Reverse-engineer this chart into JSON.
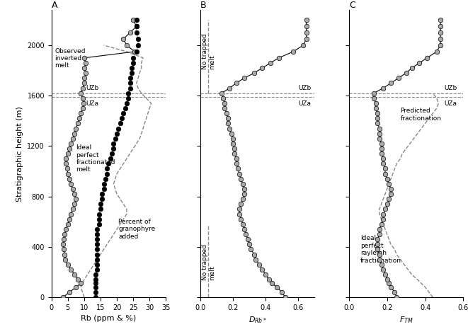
{
  "panel_A": {
    "title": "A",
    "xlabel": "Rb (ppm & %)",
    "xlim": [
      0,
      35
    ],
    "xticks": [
      0,
      5,
      10,
      15,
      20,
      25,
      30,
      35
    ],
    "observed_heights": [
      0,
      40,
      80,
      110,
      140,
      180,
      220,
      260,
      300,
      340,
      380,
      420,
      460,
      500,
      540,
      580,
      620,
      660,
      700,
      740,
      780,
      820,
      860,
      900,
      940,
      980,
      1020,
      1060,
      1100,
      1140,
      1180,
      1220,
      1260,
      1300,
      1340,
      1380,
      1420,
      1460,
      1500,
      1540,
      1580,
      1620,
      1660,
      1700,
      1740,
      1780,
      1820,
      1860,
      1900,
      1950,
      2000,
      2050,
      2100,
      2150,
      2200
    ],
    "observed_rb": [
      3.5,
      5.5,
      7.5,
      9.0,
      8.0,
      7.0,
      6.0,
      5.0,
      4.2,
      4.0,
      3.8,
      3.5,
      3.8,
      4.0,
      4.5,
      5.0,
      5.5,
      6.0,
      6.5,
      7.0,
      7.5,
      7.0,
      6.5,
      6.0,
      5.5,
      5.0,
      4.8,
      4.5,
      4.5,
      5.0,
      5.5,
      6.0,
      6.5,
      7.0,
      7.5,
      8.0,
      8.5,
      9.0,
      9.5,
      9.8,
      9.5,
      9.0,
      9.5,
      10.0,
      10.0,
      10.5,
      10.0,
      10.5,
      10.0,
      25.5,
      23.0,
      22.0,
      24.0,
      26.0,
      25.0
    ],
    "ideal_heights": [
      0,
      40,
      80,
      110,
      140,
      180,
      220,
      260,
      300,
      340,
      380,
      420,
      460,
      500,
      540,
      580,
      620,
      660,
      700,
      740,
      780,
      820,
      860,
      900,
      940,
      980,
      1020,
      1060,
      1100,
      1140,
      1180,
      1220,
      1260,
      1300,
      1340,
      1380,
      1420,
      1460,
      1500,
      1540,
      1580,
      1620,
      1660,
      1700,
      1740,
      1780,
      1820,
      1860,
      1900,
      1950,
      2000,
      2050,
      2100,
      2150,
      2200
    ],
    "ideal_rb": [
      13.5,
      13.5,
      13.5,
      13.5,
      13.5,
      13.5,
      14.0,
      14.0,
      14.0,
      14.0,
      14.0,
      14.0,
      14.0,
      14.0,
      14.0,
      14.5,
      14.5,
      14.5,
      15.0,
      15.0,
      15.5,
      15.5,
      16.0,
      16.0,
      16.5,
      17.0,
      17.0,
      17.5,
      18.0,
      18.5,
      19.0,
      19.0,
      19.5,
      20.0,
      20.5,
      21.0,
      21.5,
      22.0,
      22.5,
      23.0,
      23.5,
      23.5,
      24.0,
      24.0,
      24.0,
      24.5,
      24.5,
      25.0,
      25.0,
      26.0,
      26.5,
      26.5,
      26.0,
      26.0,
      26.0
    ],
    "granophyre_heights": [
      0,
      40,
      80,
      110,
      140,
      180,
      220,
      260,
      300,
      340,
      380,
      420,
      460,
      500,
      540,
      580,
      620,
      660,
      700,
      740,
      780,
      820,
      860,
      900,
      940,
      980,
      1020,
      1060,
      1100,
      1140,
      1180,
      1220,
      1260,
      1300,
      1340,
      1380,
      1420,
      1460,
      1500,
      1540,
      1580,
      1620,
      1660,
      1700,
      1740,
      1780,
      1820,
      1860,
      1900,
      1950,
      2000
    ],
    "granophyre_pct": [
      10.0,
      9.5,
      9.0,
      9.5,
      10.0,
      11.0,
      12.0,
      13.0,
      14.0,
      15.0,
      16.0,
      17.0,
      18.0,
      19.0,
      20.0,
      21.0,
      22.0,
      23.0,
      23.0,
      22.0,
      21.0,
      20.0,
      19.5,
      19.0,
      19.5,
      20.0,
      21.0,
      22.0,
      23.0,
      24.0,
      25.0,
      26.0,
      27.0,
      27.5,
      28.0,
      28.5,
      29.0,
      29.5,
      30.0,
      30.5,
      29.0,
      27.5,
      26.5,
      26.0,
      26.5,
      27.0,
      27.5,
      27.5,
      28.0,
      23.0,
      16.0
    ]
  },
  "panel_B": {
    "title": "B",
    "xlabel": "$D_{Rb*}$",
    "xlim": [
      0,
      0.7
    ],
    "xticks": [
      0,
      0.2,
      0.4,
      0.6
    ],
    "drb_heights": [
      0,
      40,
      80,
      110,
      140,
      180,
      220,
      260,
      300,
      340,
      380,
      420,
      460,
      500,
      540,
      580,
      620,
      660,
      700,
      740,
      780,
      820,
      860,
      900,
      940,
      980,
      1020,
      1060,
      1100,
      1140,
      1180,
      1220,
      1260,
      1300,
      1340,
      1380,
      1420,
      1460,
      1500,
      1540,
      1580,
      1620,
      1660,
      1700,
      1740,
      1780,
      1820,
      1860,
      1900,
      1950,
      2000,
      2050,
      2100,
      2150,
      2200
    ],
    "drb_values": [
      0.52,
      0.5,
      0.47,
      0.44,
      0.42,
      0.4,
      0.38,
      0.36,
      0.34,
      0.33,
      0.31,
      0.3,
      0.29,
      0.28,
      0.27,
      0.26,
      0.25,
      0.24,
      0.24,
      0.25,
      0.26,
      0.27,
      0.27,
      0.26,
      0.25,
      0.24,
      0.23,
      0.22,
      0.22,
      0.21,
      0.21,
      0.2,
      0.2,
      0.19,
      0.18,
      0.17,
      0.17,
      0.16,
      0.15,
      0.15,
      0.14,
      0.13,
      0.18,
      0.22,
      0.27,
      0.33,
      0.38,
      0.43,
      0.48,
      0.57,
      0.63,
      0.65,
      0.65,
      0.65,
      0.65
    ],
    "no_trapped_upper_h": [
      1620,
      1660,
      1700,
      1740,
      1780,
      1820,
      1860,
      1900,
      1950,
      2000,
      2050,
      2100,
      2150,
      2200
    ],
    "no_trapped_upper_v": [
      0.05,
      0.05,
      0.05,
      0.05,
      0.05,
      0.05,
      0.05,
      0.05,
      0.05,
      0.05,
      0.05,
      0.05,
      0.05,
      0.05
    ],
    "no_trapped_lower_h": [
      0,
      40,
      80,
      110,
      140,
      180,
      220,
      260,
      300,
      340,
      380,
      420,
      460,
      500,
      540,
      580
    ],
    "no_trapped_lower_v": [
      0.05,
      0.05,
      0.05,
      0.05,
      0.05,
      0.05,
      0.05,
      0.05,
      0.05,
      0.05,
      0.05,
      0.05,
      0.05,
      0.05,
      0.05,
      0.05
    ]
  },
  "panel_C": {
    "title": "C",
    "xlabel": "$F_{TM}$",
    "xlim": [
      0,
      0.6
    ],
    "xticks": [
      0,
      0.2,
      0.4,
      0.6
    ],
    "ftm_heights": [
      0,
      40,
      80,
      110,
      140,
      180,
      220,
      260,
      300,
      340,
      380,
      420,
      460,
      500,
      540,
      580,
      620,
      660,
      700,
      740,
      780,
      820,
      860,
      900,
      940,
      980,
      1020,
      1060,
      1100,
      1140,
      1180,
      1220,
      1260,
      1300,
      1340,
      1380,
      1420,
      1460,
      1500,
      1540,
      1580,
      1620,
      1660,
      1700,
      1740,
      1780,
      1820,
      1860,
      1900,
      1950,
      2000,
      2050,
      2100,
      2150,
      2200
    ],
    "ftm_values": [
      0.25,
      0.24,
      0.22,
      0.21,
      0.2,
      0.19,
      0.18,
      0.17,
      0.16,
      0.16,
      0.15,
      0.15,
      0.15,
      0.16,
      0.16,
      0.17,
      0.18,
      0.18,
      0.19,
      0.2,
      0.21,
      0.22,
      0.22,
      0.21,
      0.2,
      0.19,
      0.19,
      0.18,
      0.18,
      0.17,
      0.17,
      0.17,
      0.16,
      0.16,
      0.16,
      0.15,
      0.15,
      0.15,
      0.14,
      0.14,
      0.13,
      0.13,
      0.18,
      0.22,
      0.26,
      0.3,
      0.33,
      0.37,
      0.41,
      0.46,
      0.48,
      0.48,
      0.48,
      0.48,
      0.48
    ],
    "rayleigh_heights": [
      0,
      40,
      80,
      110,
      140,
      180,
      220,
      260,
      300,
      340,
      380,
      420,
      460,
      500,
      540,
      580,
      620,
      660,
      700,
      740,
      780,
      820,
      860,
      900,
      940,
      980,
      1020,
      1060,
      1100,
      1140,
      1180,
      1220,
      1260,
      1300,
      1340,
      1380,
      1420,
      1460,
      1500,
      1540,
      1580,
      1620
    ],
    "rayleigh_values": [
      0.44,
      0.42,
      0.4,
      0.38,
      0.36,
      0.33,
      0.31,
      0.29,
      0.27,
      0.25,
      0.24,
      0.22,
      0.21,
      0.2,
      0.19,
      0.18,
      0.17,
      0.16,
      0.16,
      0.17,
      0.18,
      0.19,
      0.2,
      0.21,
      0.22,
      0.23,
      0.24,
      0.25,
      0.27,
      0.28,
      0.3,
      0.32,
      0.34,
      0.36,
      0.38,
      0.4,
      0.42,
      0.44,
      0.46,
      0.47,
      0.46,
      0.44
    ]
  },
  "ylim": [
    0,
    2280
  ],
  "yticks": [
    0,
    400,
    800,
    1200,
    1600,
    2000
  ],
  "ylabel": "Stratigraphic height (m)",
  "UZb_height": 1620,
  "UZa_height": 1590,
  "gray_color": "#aaaaaa",
  "dashed_color": "#888888"
}
